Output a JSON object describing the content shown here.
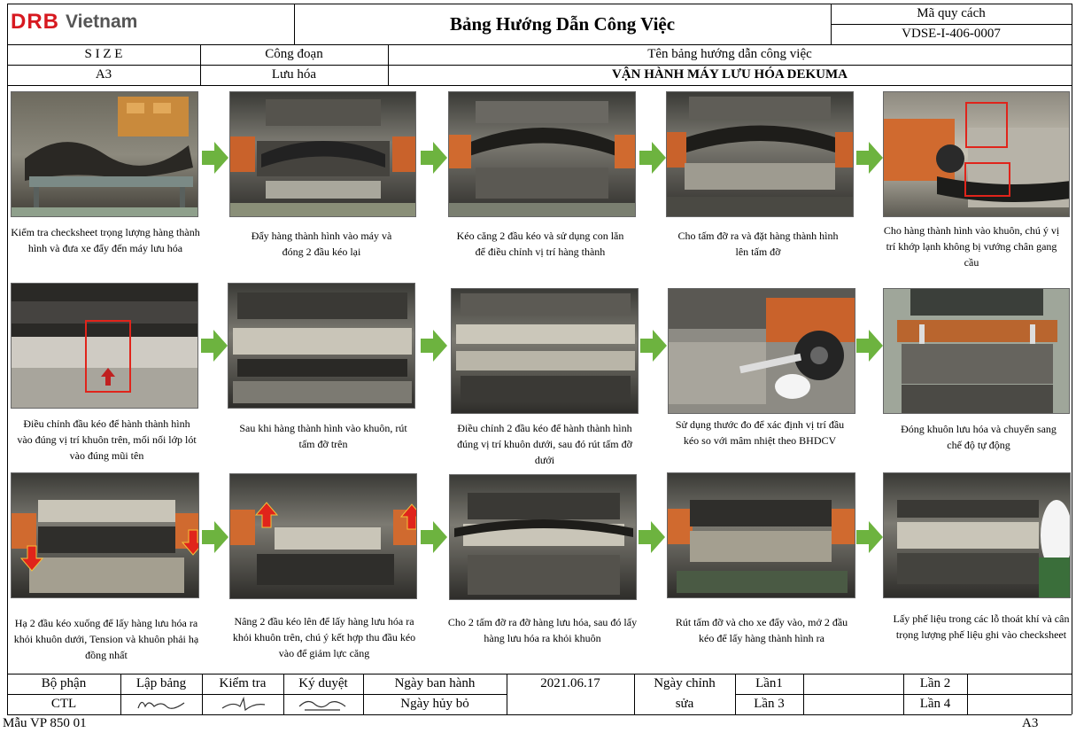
{
  "header": {
    "logo_brand": "DRB",
    "logo_country": "Vietnam",
    "doc_title": "Bảng Hướng Dẫn Công Việc",
    "spec_label": "Mã quy cách",
    "spec_code": "VDSE-I-406-0007",
    "size_label": "S I Z E",
    "size_value": "A3",
    "process_label": "Công đoạn",
    "process_value": "Lưu hóa",
    "guide_name_label": "Tên bảng hướng dẫn công việc",
    "guide_name_value": "VẬN HÀNH MÁY LƯU HÓA DEKUMA"
  },
  "colors": {
    "logo_red": "#d71920",
    "arrow_green": "#6db33f",
    "highlight_red": "#e0241b"
  },
  "steps": [
    {
      "caption": "Kiểm tra checksheet trọng lượng hàng thành hình và đưa xe đẩy đến máy lưu hóa"
    },
    {
      "caption": "Đẩy hàng thành hình vào máy và đóng 2 đầu kéo lại"
    },
    {
      "caption": "Kéo căng 2 đầu kéo và sử dụng con lăn để điều chỉnh vị trí hàng thành"
    },
    {
      "caption": "Cho tấm đỡ ra và đặt hàng thành hình lên tấm đỡ"
    },
    {
      "caption": "Cho hàng thành hình vào khuôn, chú ý vị trí khớp lạnh không bị vướng chân gang cầu"
    },
    {
      "caption": "Điều chỉnh đầu kéo để hành thành hình vào đúng vị trí khuôn trên, mối nối lớp lót vào đúng mũi tên"
    },
    {
      "caption": "Sau khi hàng thành hình vào khuôn, rút tấm đỡ trên"
    },
    {
      "caption": "Điều chỉnh 2 đầu kéo để hành thành hình đúng vị trí khuôn dưới, sau đó rút tấm đỡ dưới"
    },
    {
      "caption": "Sử dụng thước đo để xác định  vị trí đầu kéo so với mâm nhiệt theo BHDCV"
    },
    {
      "caption": "Đóng khuôn lưu hóa và chuyển sang chế độ tự động"
    },
    {
      "caption": "Hạ 2 đầu kéo xuống để lấy hàng lưu hóa ra khỏi khuôn dưới, Tension và khuôn phải hạ đồng nhất"
    },
    {
      "caption": "Nâng 2 đầu kéo lên để lấy hàng lưu hóa ra khỏi khuôn trên, chú ý kết hợp thu đầu kéo vào để giảm lực căng"
    },
    {
      "caption": "Cho 2 tấm đỡ ra đỡ hàng lưu hóa, sau đó lấy hàng lưu hóa ra khỏi khuôn"
    },
    {
      "caption": "Rút tấm đỡ và cho xe đẩy vào, mở 2 đầu kéo để lấy hàng thành hình ra"
    },
    {
      "caption": "Lấy phế liệu trong các lỗ thoát khí và cân trọng lượng phế liệu ghi vào checksheet"
    }
  ],
  "footer_table": {
    "dept_label": "Bộ phận",
    "dept_value": "CTL",
    "prepared_label": "Lập bảng",
    "checked_label": "Kiểm tra",
    "approved_label": "Ký duyệt",
    "issue_date_label": "Ngày ban hành",
    "issue_date_value": "2021.06.17",
    "cancel_date_label": "Ngày hủy bỏ",
    "cancel_date_value": "",
    "revision_label_1": "Ngày chỉnh",
    "revision_label_2": "sửa",
    "rev1": "Lần1",
    "rev2": "Lần 2",
    "rev3": "Lần 3",
    "rev4": "Lần 4"
  },
  "form_code": "Mẫu VP  850   01",
  "page_size": "A3"
}
